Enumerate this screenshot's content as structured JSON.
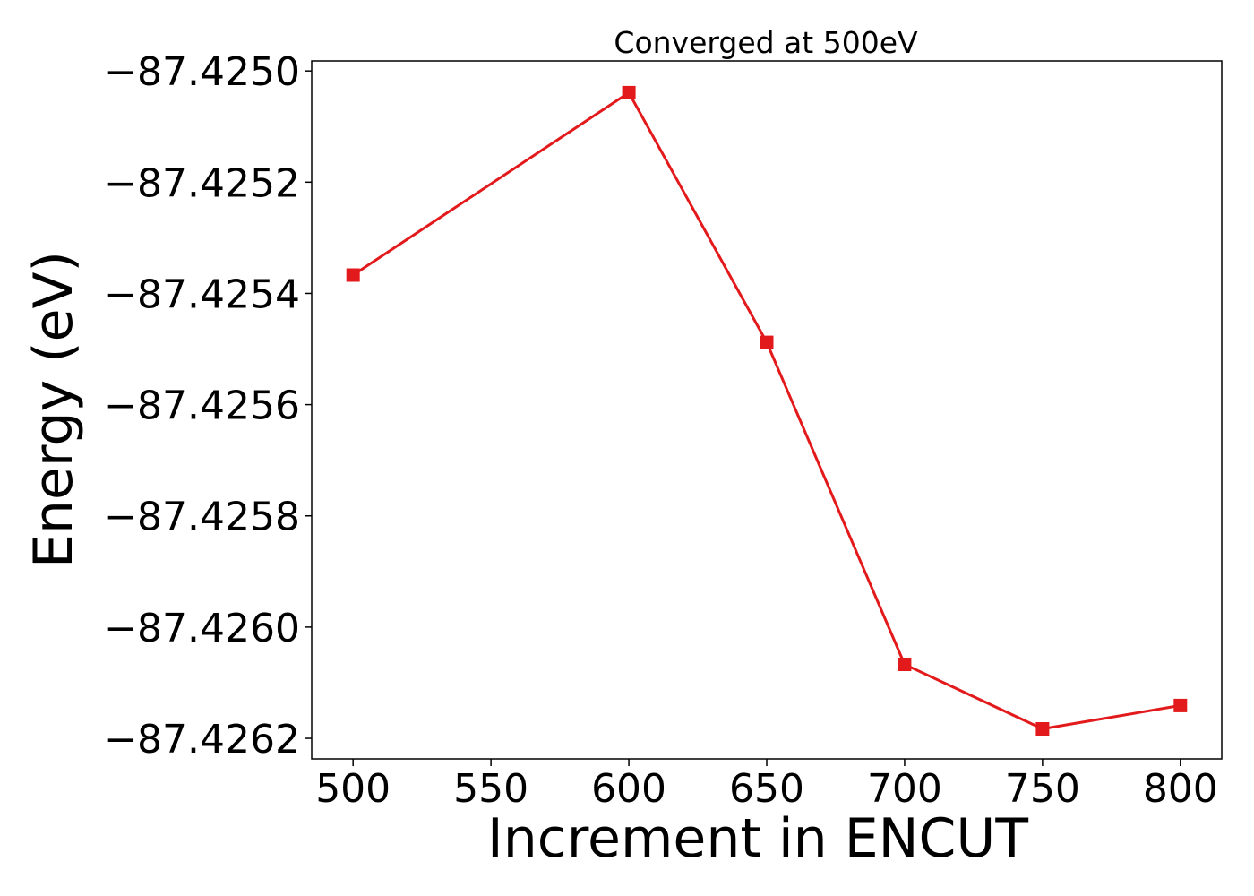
{
  "chart_data": {
    "type": "line",
    "title": "Converged at 500eV",
    "xlabel": "Increment in ENCUT",
    "ylabel": "Energy (eV)",
    "x": [
      500,
      600,
      650,
      700,
      750,
      800
    ],
    "series": [
      {
        "values": [
          -87.425367,
          -87.425039,
          -87.425488,
          -87.426067,
          -87.426183,
          -87.426141
        ],
        "color": "#e31a1c",
        "marker": "square"
      }
    ],
    "xticks": [
      500,
      550,
      600,
      650,
      700,
      750,
      800
    ],
    "xtick_labels": [
      "500",
      "550",
      "600",
      "650",
      "700",
      "750",
      "800"
    ],
    "yticks": [
      -87.425,
      -87.4252,
      -87.4254,
      -87.4256,
      -87.4258,
      -87.426,
      -87.4262
    ],
    "ytick_labels": [
      "−87.4250",
      "−87.4252",
      "−87.4254",
      "−87.4256",
      "−87.4258",
      "−87.4260",
      "−87.4262"
    ],
    "xlim": [
      485,
      815
    ],
    "ylim": [
      -87.426237,
      -87.424982
    ],
    "grid": false,
    "legend": false
  }
}
